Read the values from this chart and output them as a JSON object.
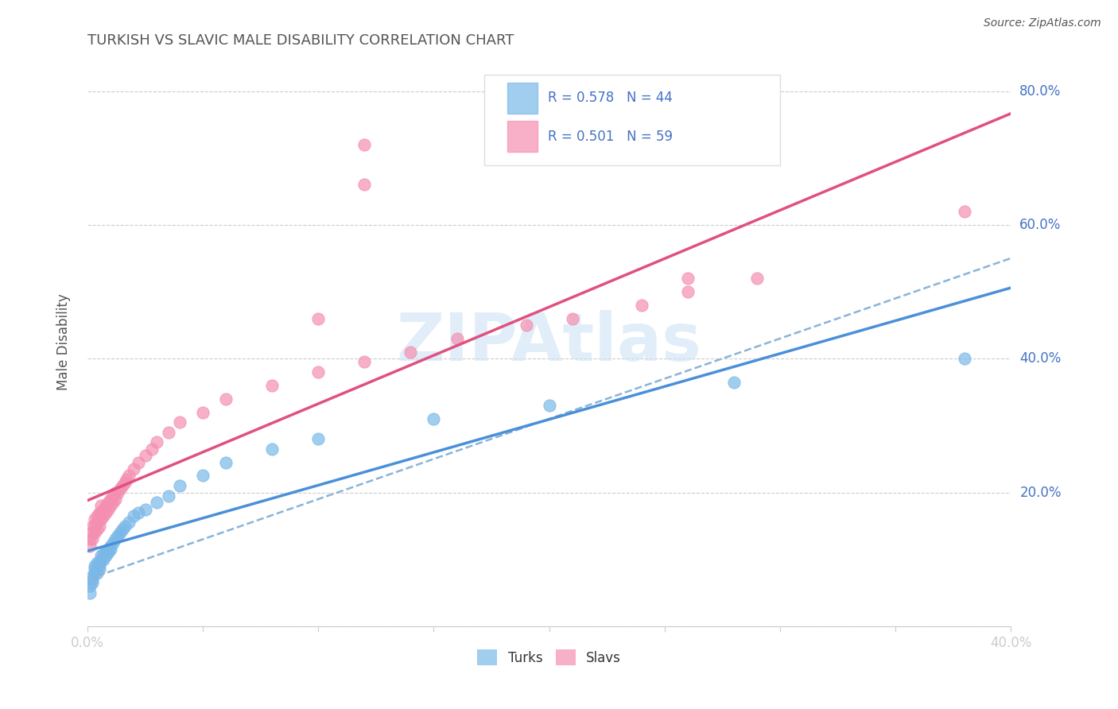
{
  "title": "TURKISH VS SLAVIC MALE DISABILITY CORRELATION CHART",
  "source": "Source: ZipAtlas.com",
  "ylabel_label": "Male Disability",
  "turks_color": "#7ab8e8",
  "slavs_color": "#f48fb1",
  "turks_line_color": "#4a90d9",
  "slavs_line_color": "#e05080",
  "dashed_line_color": "#8ab4d8",
  "background_color": "#ffffff",
  "right_label_color": "#4472c4",
  "title_color": "#555555",
  "watermark_color": "#cde4f5",
  "xlim": [
    0.0,
    0.4
  ],
  "ylim": [
    0.0,
    0.85
  ],
  "turks_x": [
    0.001,
    0.001,
    0.002,
    0.002,
    0.002,
    0.003,
    0.003,
    0.003,
    0.004,
    0.004,
    0.005,
    0.005,
    0.005,
    0.006,
    0.006,
    0.007,
    0.007,
    0.008,
    0.008,
    0.009,
    0.009,
    0.01,
    0.01,
    0.011,
    0.012,
    0.013,
    0.014,
    0.015,
    0.016,
    0.018,
    0.02,
    0.022,
    0.025,
    0.03,
    0.035,
    0.04,
    0.05,
    0.06,
    0.08,
    0.1,
    0.15,
    0.2,
    0.28,
    0.38
  ],
  "turks_y": [
    0.05,
    0.06,
    0.065,
    0.07,
    0.075,
    0.08,
    0.085,
    0.09,
    0.08,
    0.095,
    0.085,
    0.09,
    0.095,
    0.1,
    0.105,
    0.1,
    0.108,
    0.105,
    0.112,
    0.11,
    0.115,
    0.115,
    0.12,
    0.125,
    0.13,
    0.135,
    0.14,
    0.145,
    0.15,
    0.155,
    0.165,
    0.17,
    0.175,
    0.185,
    0.195,
    0.21,
    0.225,
    0.245,
    0.265,
    0.28,
    0.31,
    0.33,
    0.365,
    0.4
  ],
  "slavs_x": [
    0.001,
    0.001,
    0.002,
    0.002,
    0.002,
    0.003,
    0.003,
    0.003,
    0.004,
    0.004,
    0.004,
    0.005,
    0.005,
    0.005,
    0.006,
    0.006,
    0.006,
    0.007,
    0.007,
    0.008,
    0.008,
    0.009,
    0.009,
    0.01,
    0.01,
    0.011,
    0.011,
    0.012,
    0.012,
    0.013,
    0.014,
    0.015,
    0.016,
    0.017,
    0.018,
    0.02,
    0.022,
    0.025,
    0.028,
    0.03,
    0.035,
    0.04,
    0.05,
    0.06,
    0.08,
    0.1,
    0.12,
    0.14,
    0.16,
    0.19,
    0.21,
    0.24,
    0.26,
    0.29,
    0.12,
    0.12,
    0.1,
    0.26,
    0.38
  ],
  "slavs_y": [
    0.12,
    0.13,
    0.13,
    0.14,
    0.15,
    0.14,
    0.15,
    0.16,
    0.145,
    0.155,
    0.165,
    0.15,
    0.16,
    0.17,
    0.16,
    0.17,
    0.18,
    0.165,
    0.175,
    0.17,
    0.18,
    0.175,
    0.185,
    0.18,
    0.19,
    0.185,
    0.195,
    0.19,
    0.2,
    0.2,
    0.205,
    0.21,
    0.215,
    0.22,
    0.225,
    0.235,
    0.245,
    0.255,
    0.265,
    0.275,
    0.29,
    0.305,
    0.32,
    0.34,
    0.36,
    0.38,
    0.395,
    0.41,
    0.43,
    0.45,
    0.46,
    0.48,
    0.5,
    0.52,
    0.72,
    0.66,
    0.46,
    0.52,
    0.62
  ],
  "y_tick_positions": [
    0.0,
    0.2,
    0.4,
    0.6,
    0.8
  ],
  "y_tick_labels": [
    "",
    "20.0%",
    "40.0%",
    "60.0%",
    "80.0%"
  ],
  "x_tick_positions": [
    0.0,
    0.05,
    0.1,
    0.15,
    0.2,
    0.25,
    0.3,
    0.35,
    0.4
  ],
  "x_tick_labels": [
    "0.0%",
    "",
    "",
    "",
    "",
    "",
    "",
    "",
    "40.0%"
  ]
}
